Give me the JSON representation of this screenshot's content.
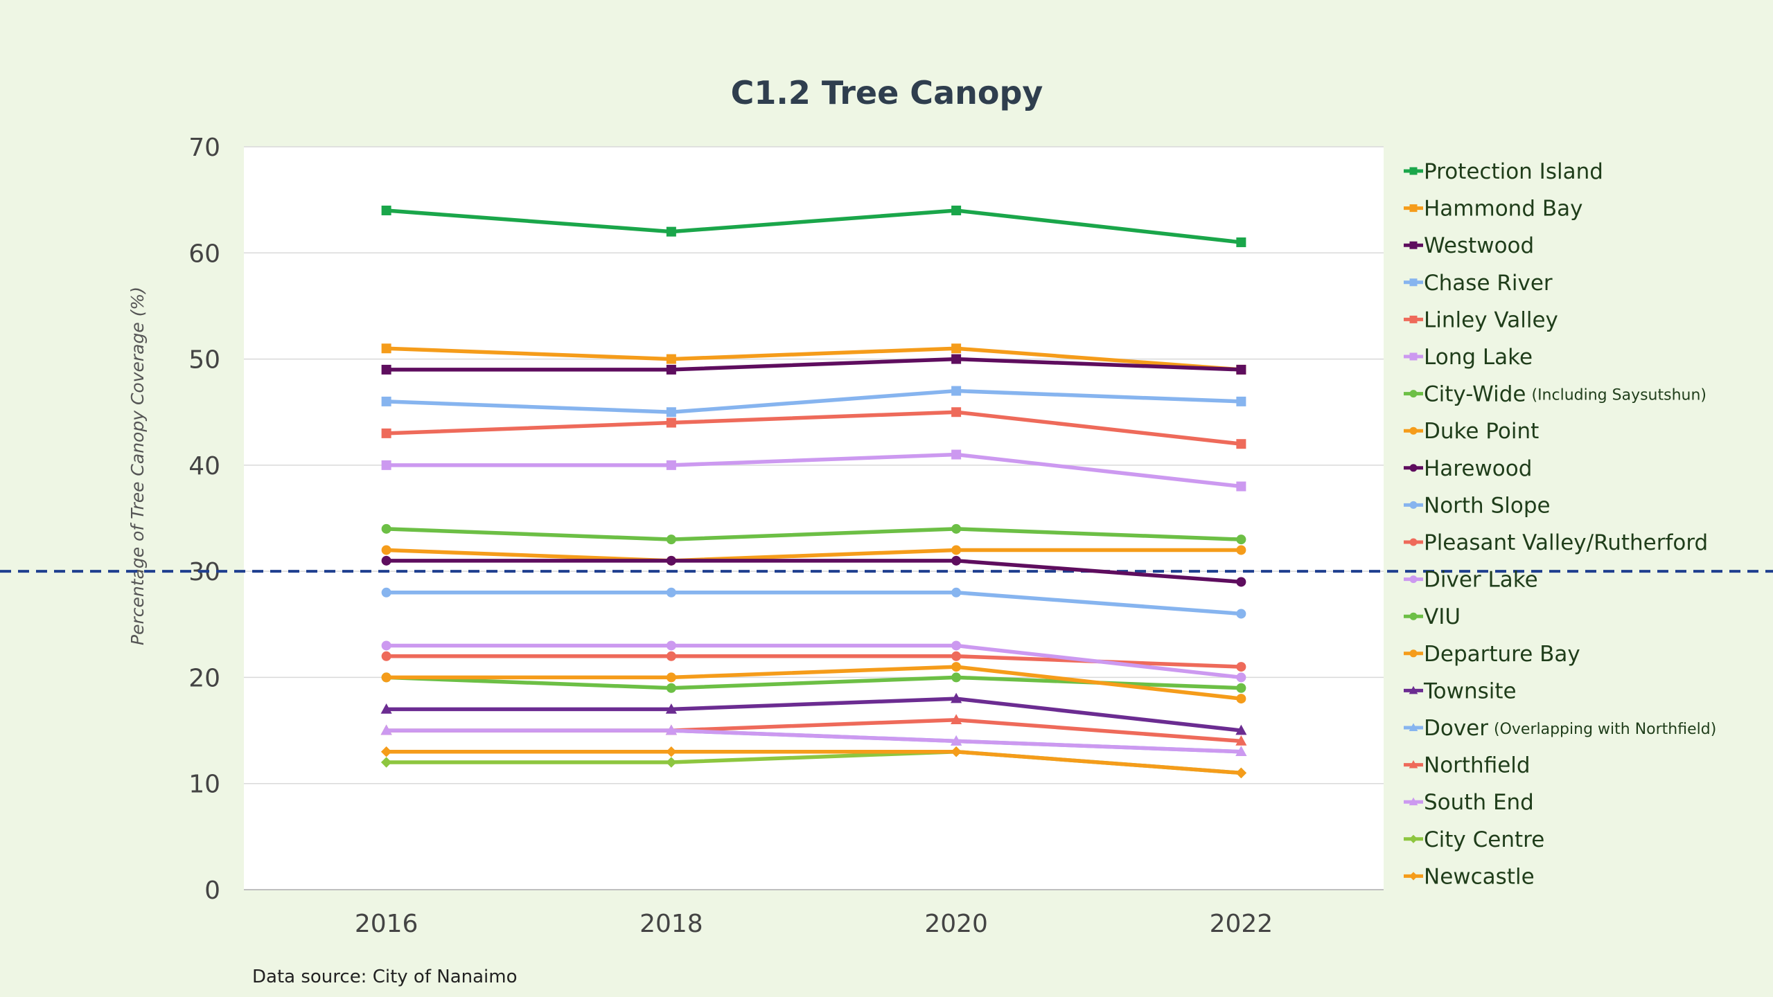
{
  "chart_data": {
    "type": "line",
    "title": "C1.2 Tree Canopy",
    "ylabel": "Percentage of Tree Canopy Coverage (%)",
    "xlabel": "",
    "x": [
      "2016",
      "2018",
      "2020",
      "2022"
    ],
    "ylim": [
      0,
      70
    ],
    "yticks": [
      0,
      10,
      20,
      30,
      40,
      50,
      60,
      70
    ],
    "grid": true,
    "legend_position": "right",
    "reference_line": {
      "value": 30,
      "style": "dashed",
      "color": "#1f3f8f"
    },
    "source": "Data source: City of Nanaimo",
    "series": [
      {
        "name": "Protection Island",
        "note": "",
        "values": [
          64,
          62,
          64,
          61
        ],
        "color": "#1aa64a",
        "marker": "square"
      },
      {
        "name": "Hammond Bay",
        "note": "",
        "values": [
          51,
          50,
          51,
          49
        ],
        "color": "#f59c1a",
        "marker": "square"
      },
      {
        "name": "Westwood",
        "note": "",
        "values": [
          49,
          49,
          50,
          49
        ],
        "color": "#5e0d5e",
        "marker": "square"
      },
      {
        "name": "Chase River",
        "note": "",
        "values": [
          46,
          45,
          47,
          46
        ],
        "color": "#86b4ef",
        "marker": "square"
      },
      {
        "name": "Linley Valley",
        "note": "",
        "values": [
          43,
          44,
          45,
          42
        ],
        "color": "#ee6a5a",
        "marker": "square"
      },
      {
        "name": "Long Lake",
        "note": "",
        "values": [
          40,
          40,
          41,
          38
        ],
        "color": "#cc99f0",
        "marker": "square"
      },
      {
        "name": "City-Wide",
        "note": "(Including Saysutshun)",
        "values": [
          34,
          33,
          34,
          33
        ],
        "color": "#6cbf45",
        "marker": "circle"
      },
      {
        "name": "Duke Point",
        "note": "",
        "values": [
          32,
          31,
          32,
          32
        ],
        "color": "#f59c1a",
        "marker": "circle"
      },
      {
        "name": "Harewood",
        "note": "",
        "values": [
          31,
          31,
          31,
          29
        ],
        "color": "#5e0d5e",
        "marker": "circle"
      },
      {
        "name": "North Slope",
        "note": "",
        "values": [
          28,
          28,
          28,
          26
        ],
        "color": "#86b4ef",
        "marker": "circle"
      },
      {
        "name": "Pleasant Valley/Rutherford",
        "note": "",
        "values": [
          22,
          22,
          22,
          21
        ],
        "color": "#ee6a5a",
        "marker": "circle"
      },
      {
        "name": "Diver Lake",
        "note": "",
        "values": [
          23,
          23,
          23,
          20
        ],
        "color": "#cc99f0",
        "marker": "circle"
      },
      {
        "name": "VIU",
        "note": "",
        "values": [
          20,
          19,
          20,
          19
        ],
        "color": "#6cbf45",
        "marker": "circle"
      },
      {
        "name": "Departure Bay",
        "note": "",
        "values": [
          20,
          20,
          21,
          18
        ],
        "color": "#f59c1a",
        "marker": "circle"
      },
      {
        "name": "Townsite",
        "note": "",
        "values": [
          17,
          17,
          18,
          15
        ],
        "color": "#6b2c91",
        "marker": "triangle"
      },
      {
        "name": "Dover",
        "note": "(Overlapping with Northfield)",
        "values": [
          15,
          15,
          14,
          13
        ],
        "color": "#86b4ef",
        "marker": "triangle"
      },
      {
        "name": "Northfield",
        "note": "",
        "values": [
          15,
          15,
          16,
          14
        ],
        "color": "#ee6a5a",
        "marker": "triangle"
      },
      {
        "name": "South End",
        "note": "",
        "values": [
          15,
          15,
          14,
          13
        ],
        "color": "#cc99f0",
        "marker": "triangle"
      },
      {
        "name": "City Centre",
        "note": "",
        "values": [
          12,
          12,
          13,
          11
        ],
        "color": "#8dc63f",
        "marker": "diamond"
      },
      {
        "name": "Newcastle",
        "note": "",
        "values": [
          13,
          13,
          13,
          11
        ],
        "color": "#f59c1a",
        "marker": "diamond"
      }
    ]
  }
}
